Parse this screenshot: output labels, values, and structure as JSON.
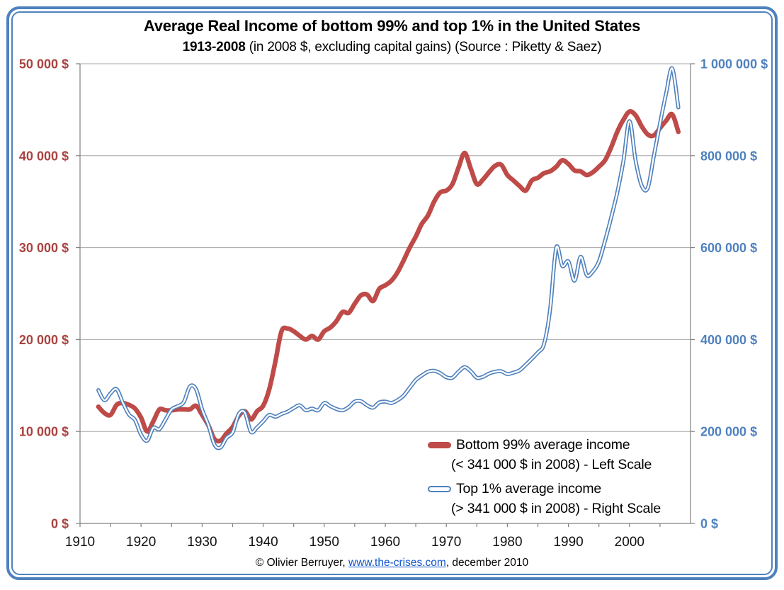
{
  "title": {
    "line1": "Average Real Income of bottom 99% and top 1% in the United States",
    "line2_bold": "1913-2008",
    "line2_rest": " (in 2008 $, excluding capital gains) (Source : Piketty & Saez)"
  },
  "legend": {
    "entries": [
      {
        "line1": "Bottom 99% average income",
        "line2": "(< 341 000 $ in 2008) - Left Scale",
        "marker_color": "#be4b48"
      },
      {
        "line1": "Top 1% average income",
        "line2": "(> 341 000 $ in 2008) - Right Scale",
        "marker_color": "#4f81bd"
      }
    ]
  },
  "footer": {
    "prefix": "© Olivier Berruyer, ",
    "link": "www.the-crises.com",
    "suffix": ", december 2010"
  },
  "colors": {
    "frame": "#4f81bd",
    "grid": "#a6a6a6",
    "axis": "#808080",
    "left_axis_labels": "#aa423f",
    "right_axis_labels": "#4f81bd",
    "hyperlink": "#1155cc"
  },
  "chart_data": {
    "type": "line",
    "title": "Average Real Income of bottom 99% and top 1% in the United States 1913-2008 (in 2008 $, excluding capital gains) (Source : Piketty & Saez)",
    "grid": "horizontal",
    "legend_position": "inside-lower-right",
    "x": [
      1913,
      1914,
      1915,
      1916,
      1917,
      1918,
      1919,
      1920,
      1921,
      1922,
      1923,
      1924,
      1925,
      1926,
      1927,
      1928,
      1929,
      1930,
      1931,
      1932,
      1933,
      1934,
      1935,
      1936,
      1937,
      1938,
      1939,
      1940,
      1941,
      1942,
      1943,
      1944,
      1945,
      1946,
      1947,
      1948,
      1949,
      1950,
      1951,
      1952,
      1953,
      1954,
      1955,
      1956,
      1957,
      1958,
      1959,
      1960,
      1961,
      1962,
      1963,
      1964,
      1965,
      1966,
      1967,
      1968,
      1969,
      1970,
      1971,
      1972,
      1973,
      1974,
      1975,
      1976,
      1977,
      1978,
      1979,
      1980,
      1981,
      1982,
      1983,
      1984,
      1985,
      1986,
      1987,
      1988,
      1989,
      1990,
      1991,
      1992,
      1993,
      1994,
      1995,
      1996,
      1997,
      1998,
      1999,
      2000,
      2001,
      2002,
      2003,
      2004,
      2005,
      2006,
      2007,
      2008
    ],
    "series": [
      {
        "name": "Bottom 99% average income (< 341 000 $ in 2008) - Left Scale",
        "axis": "left",
        "color": "#be4b48",
        "style": "solid-thick",
        "values": [
          12700,
          12000,
          11800,
          12900,
          13100,
          12900,
          12500,
          11500,
          10000,
          11100,
          12400,
          12300,
          12300,
          12400,
          12400,
          12400,
          12800,
          11800,
          10700,
          9200,
          9000,
          9800,
          10500,
          11700,
          12200,
          11300,
          12200,
          12800,
          14600,
          17600,
          20900,
          21200,
          20900,
          20400,
          20000,
          20400,
          20000,
          20900,
          21300,
          22000,
          23000,
          22900,
          23900,
          24800,
          24900,
          24200,
          25500,
          25900,
          26400,
          27300,
          28600,
          30000,
          31200,
          32600,
          33500,
          35000,
          36000,
          36200,
          36900,
          38700,
          40300,
          38600,
          36900,
          37400,
          38200,
          38900,
          39000,
          37900,
          37300,
          36700,
          36200,
          37300,
          37600,
          38100,
          38300,
          38800,
          39500,
          39100,
          38400,
          38300,
          37900,
          38200,
          38800,
          39500,
          40900,
          42600,
          43900,
          44800,
          44400,
          43200,
          42300,
          42200,
          43000,
          43800,
          44500,
          42600
        ]
      },
      {
        "name": "Top 1% average income (> 341 000 $ in 2008) - Right Scale",
        "axis": "right",
        "color": "#4f81bd",
        "style": "double-outline",
        "values": [
          290000,
          268000,
          283000,
          292000,
          263000,
          237000,
          225000,
          193000,
          180000,
          208000,
          205000,
          226000,
          248000,
          255000,
          264000,
          298000,
          292000,
          248000,
          215000,
          172000,
          165000,
          186000,
          198000,
          238000,
          241000,
          199000,
          209000,
          222000,
          236000,
          232000,
          238000,
          243000,
          251000,
          257000,
          246000,
          250000,
          246000,
          262000,
          255000,
          249000,
          246000,
          253000,
          265000,
          266000,
          257000,
          252000,
          263000,
          265000,
          262000,
          268000,
          278000,
          295000,
          312000,
          322000,
          330000,
          332000,
          327000,
          318000,
          317000,
          330000,
          340000,
          331000,
          317000,
          319000,
          326000,
          330000,
          331000,
          325000,
          328000,
          333000,
          345000,
          358000,
          372000,
          390000,
          465000,
          600000,
          560000,
          570000,
          528000,
          580000,
          540000,
          548000,
          570000,
          615000,
          665000,
          720000,
          788000,
          875000,
          790000,
          735000,
          730000,
          800000,
          870000,
          935000,
          990000,
          905000
        ]
      }
    ],
    "axes": {
      "x": {
        "min": 1910,
        "max": 2010,
        "tick_start": 1910,
        "tick_step": 5,
        "tick_end": 2005,
        "label_years": [
          1910,
          1920,
          1930,
          1940,
          1950,
          1960,
          1970,
          1980,
          1990,
          2000
        ]
      },
      "left": {
        "min": 0,
        "max": 50000,
        "values": [
          0,
          10000,
          20000,
          30000,
          40000,
          50000
        ],
        "labels": [
          "0 $",
          "10 000 $",
          "20 000 $",
          "30 000 $",
          "40 000 $",
          "50 000 $"
        ]
      },
      "right": {
        "min": 0,
        "max": 1000000,
        "values": [
          0,
          200000,
          400000,
          600000,
          800000,
          1000000
        ],
        "labels": [
          "0 $",
          "200 000 $",
          "400 000 $",
          "600 000 $",
          "800 000 $",
          "1 000 000 $"
        ]
      }
    }
  }
}
